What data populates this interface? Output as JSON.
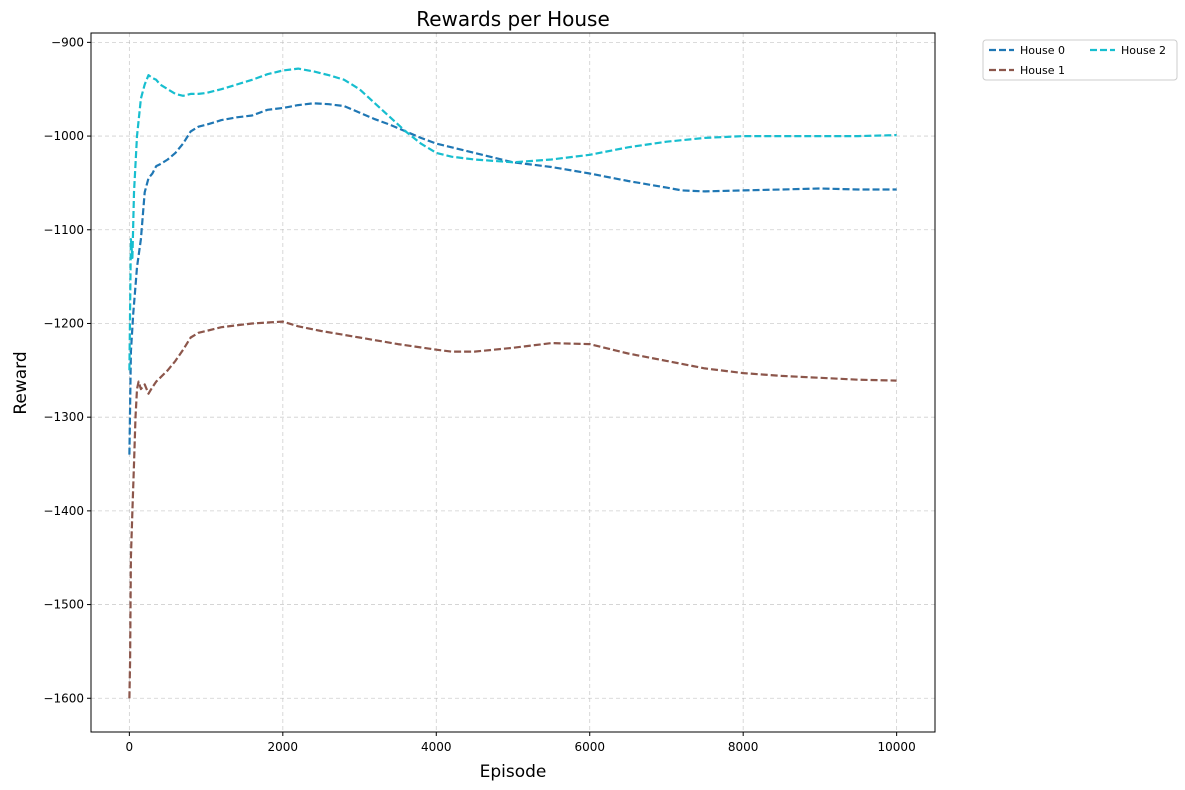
{
  "chart_data": {
    "type": "line",
    "title": "Rewards per House",
    "xlabel": "Episode",
    "ylabel": "Reward",
    "xlim": [
      -500,
      10500
    ],
    "ylim": [
      -1636,
      -890
    ],
    "x_ticks": [
      0,
      2000,
      4000,
      6000,
      8000,
      10000
    ],
    "x_tick_labels": [
      "0",
      "2000",
      "4000",
      "6000",
      "8000",
      "10000"
    ],
    "y_ticks": [
      -900,
      -1000,
      -1100,
      -1200,
      -1300,
      -1400,
      -1500,
      -1600
    ],
    "y_tick_labels": [
      "−900",
      "−1000",
      "−1100",
      "−1200",
      "−1300",
      "−1400",
      "−1500",
      "−1600"
    ],
    "grid": true,
    "grid_style": "dashed",
    "legend_position": "outside-top-right",
    "legend_columns": 2,
    "line_style": "dashed",
    "series": [
      {
        "name": "House 0",
        "color": "#1f77b4",
        "x": [
          0,
          20,
          50,
          80,
          100,
          150,
          200,
          250,
          300,
          350,
          400,
          500,
          600,
          700,
          800,
          900,
          1000,
          1200,
          1400,
          1600,
          1800,
          2000,
          2200,
          2400,
          2600,
          2800,
          3000,
          3200,
          3400,
          3600,
          3800,
          4000,
          4200,
          4500,
          4800,
          5000,
          5500,
          6000,
          6500,
          7000,
          7200,
          7500,
          8000,
          8500,
          9000,
          9500,
          10000
        ],
        "y": [
          -1340,
          -1230,
          -1190,
          -1160,
          -1140,
          -1110,
          -1060,
          -1045,
          -1040,
          -1032,
          -1030,
          -1025,
          -1018,
          -1008,
          -995,
          -990,
          -988,
          -983,
          -980,
          -978,
          -972,
          -970,
          -967,
          -965,
          -966,
          -968,
          -975,
          -982,
          -988,
          -995,
          -1002,
          -1008,
          -1012,
          -1018,
          -1024,
          -1028,
          -1033,
          -1040,
          -1048,
          -1055,
          -1058,
          -1059,
          -1058,
          -1057,
          -1056,
          -1057,
          -1057
        ]
      },
      {
        "name": "House 1",
        "color": "#8c564b",
        "x": [
          0,
          10,
          20,
          40,
          60,
          80,
          100,
          120,
          150,
          200,
          250,
          300,
          350,
          400,
          500,
          600,
          700,
          800,
          900,
          1000,
          1200,
          1400,
          1600,
          1800,
          2000,
          2200,
          2500,
          3000,
          3500,
          4000,
          4200,
          4500,
          5000,
          5500,
          6000,
          6500,
          7000,
          7500,
          8000,
          8500,
          9000,
          9500,
          10000
        ],
        "y": [
          -1600,
          -1560,
          -1450,
          -1400,
          -1350,
          -1300,
          -1270,
          -1262,
          -1270,
          -1265,
          -1275,
          -1268,
          -1262,
          -1258,
          -1250,
          -1240,
          -1228,
          -1215,
          -1210,
          -1208,
          -1204,
          -1202,
          -1200,
          -1199,
          -1198,
          -1203,
          -1208,
          -1215,
          -1222,
          -1228,
          -1230,
          -1230,
          -1226,
          -1221,
          -1222,
          -1232,
          -1240,
          -1248,
          -1253,
          -1256,
          -1258,
          -1260,
          -1261
        ]
      },
      {
        "name": "House 2",
        "color": "#17becf",
        "x": [
          0,
          20,
          40,
          60,
          80,
          100,
          150,
          200,
          250,
          300,
          350,
          400,
          500,
          600,
          700,
          800,
          900,
          1000,
          1200,
          1400,
          1600,
          1800,
          2000,
          2200,
          2400,
          2600,
          2800,
          3000,
          3200,
          3400,
          3600,
          3800,
          4000,
          4200,
          4500,
          5000,
          5500,
          6000,
          6500,
          7000,
          7500,
          8000,
          8500,
          9000,
          9500,
          10000
        ],
        "y": [
          -1250,
          -1110,
          -1130,
          -1060,
          -1030,
          -1000,
          -960,
          -945,
          -935,
          -938,
          -940,
          -945,
          -950,
          -955,
          -957,
          -955,
          -955,
          -954,
          -950,
          -945,
          -940,
          -934,
          -930,
          -928,
          -931,
          -935,
          -940,
          -950,
          -965,
          -980,
          -995,
          -1008,
          -1018,
          -1022,
          -1025,
          -1028,
          -1025,
          -1020,
          -1012,
          -1006,
          -1002,
          -1000,
          -1000,
          -1000,
          -1000,
          -999
        ]
      }
    ]
  }
}
